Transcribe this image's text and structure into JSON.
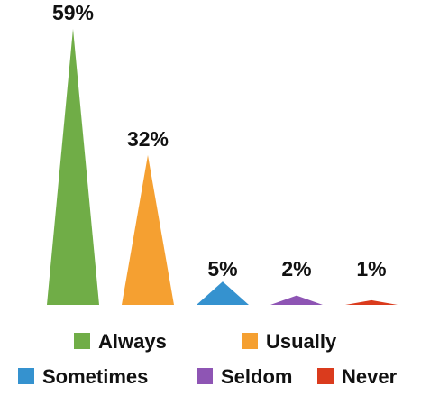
{
  "chart_data": {
    "type": "bar",
    "bar_shape": "triangle",
    "unit": "%",
    "title": "",
    "xlabel": "",
    "ylabel": "",
    "ylim": [
      0,
      59
    ],
    "grid": false,
    "legend_position": "bottom",
    "categories": [
      "Always",
      "Usually",
      "Sometimes",
      "Seldom",
      "Never"
    ],
    "values": [
      59,
      32,
      5,
      2,
      1
    ],
    "data_labels": [
      "59%",
      "32%",
      "5%",
      "2%",
      "1%"
    ],
    "colors": [
      "#70ad47",
      "#f5a031",
      "#3592cf",
      "#8e55b4",
      "#da3b1d"
    ],
    "legend": [
      {
        "label": "Always",
        "color": "#70ad47"
      },
      {
        "label": "Usually",
        "color": "#f5a031"
      },
      {
        "label": "Sometimes",
        "color": "#3592cf"
      },
      {
        "label": "Seldom",
        "color": "#8e55b4"
      },
      {
        "label": "Never",
        "color": "#da3b1d"
      }
    ]
  }
}
